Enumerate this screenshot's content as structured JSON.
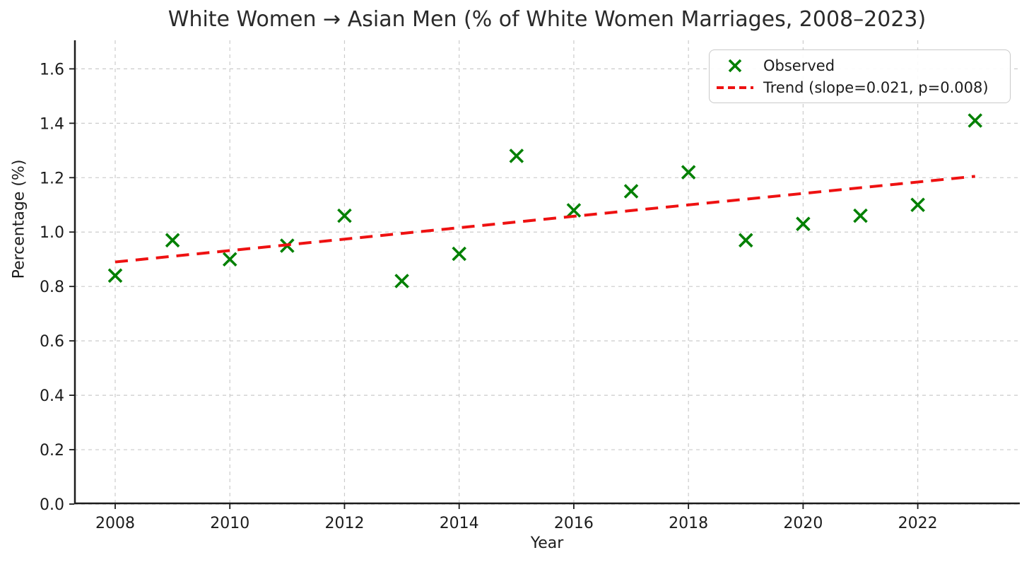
{
  "figure": {
    "background": "#ffffff"
  },
  "chart_data": {
    "type": "scatter",
    "title": "White Women → Asian Men (% of White Women Marriages, 2008–2023)",
    "xlabel": "Year",
    "ylabel": "Percentage (%)",
    "x_range": [
      2007.285,
      2023.78
    ],
    "y_range": [
      0,
      1.705
    ],
    "x_ticks": [
      2008,
      2010,
      2012,
      2014,
      2016,
      2018,
      2020,
      2022
    ],
    "y_ticks": [
      0.0,
      0.2,
      0.4,
      0.6,
      0.8,
      1.0,
      1.2,
      1.4,
      1.6
    ],
    "grid": true,
    "grid_style": "dashed",
    "legend_position": "upper right",
    "colors": {
      "grid": "#cbcbcb",
      "spine": "#1c1c1c",
      "observed": "#008000",
      "trend": "#ee1111"
    },
    "series": [
      {
        "name": "Observed",
        "type": "scatter",
        "marker": "x",
        "color": "#008000",
        "x": [
          2008,
          2009,
          2010,
          2011,
          2012,
          2013,
          2014,
          2015,
          2016,
          2017,
          2018,
          2019,
          2020,
          2021,
          2022,
          2023
        ],
        "y": [
          0.84,
          0.97,
          0.9,
          0.95,
          1.06,
          0.82,
          0.92,
          1.28,
          1.08,
          1.15,
          1.22,
          0.97,
          1.03,
          1.06,
          1.1,
          1.41
        ]
      },
      {
        "name": "Trend (slope=0.021, p=0.008)",
        "type": "line",
        "style": "dashed",
        "color": "#ee1111",
        "x": [
          2008,
          2023
        ],
        "y": [
          0.89,
          1.205
        ]
      }
    ]
  }
}
